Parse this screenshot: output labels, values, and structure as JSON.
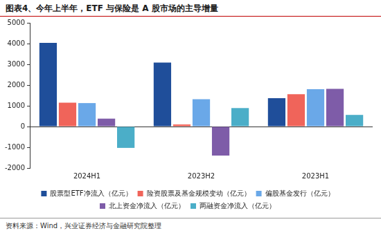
{
  "chart_data": {
    "type": "bar",
    "title": "图表4、今年上半年，ETF 与保险是 A 股市场的主导增量",
    "source": "资料来源：Wind，兴业证券经济与金融研究院整理",
    "categories": [
      "2024H1",
      "2023H2",
      "2023H1"
    ],
    "series": [
      {
        "name": "股票型ETF净流入（亿元）",
        "color": "#1f4e9a",
        "values": [
          4030,
          3080,
          1370
        ]
      },
      {
        "name": "险资股票及基金规模变动（亿元）",
        "color": "#f0645a",
        "values": [
          1150,
          100,
          1560
        ]
      },
      {
        "name": "偏股基金发行（亿元）",
        "color": "#6aa8e8",
        "values": [
          1130,
          1320,
          1800
        ]
      },
      {
        "name": "北上资金净流入（亿元）",
        "color": "#7e5ca8",
        "values": [
          380,
          -1400,
          1820
        ]
      },
      {
        "name": "两融资金净流入（亿元）",
        "color": "#4baec8",
        "values": [
          -1030,
          890,
          560
        ]
      }
    ],
    "ylim": [
      -2000,
      5000
    ],
    "yticks": [
      -2000,
      -1000,
      0,
      1000,
      2000,
      3000,
      4000,
      5000
    ],
    "grid": false,
    "legend": "bottom"
  }
}
